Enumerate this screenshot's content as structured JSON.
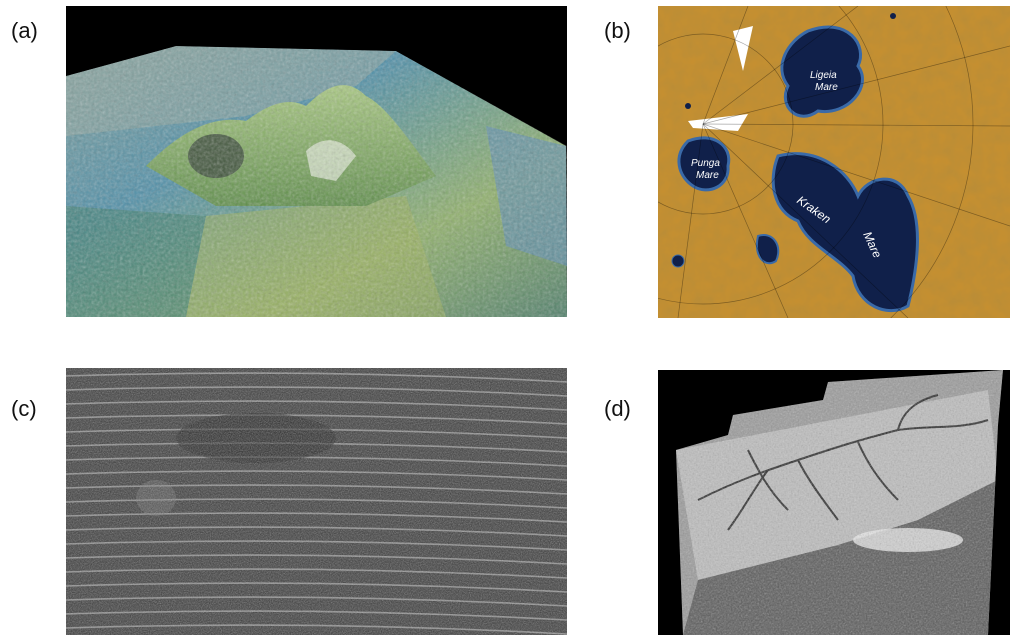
{
  "panels": [
    {
      "id": "a",
      "label": "(a)"
    },
    {
      "id": "b",
      "label": "(b)",
      "map_labels": {
        "ligeia": "Ligeia",
        "ligeia_mare": "Mare",
        "punga": "Punga",
        "punga_mare": "Mare",
        "kraken": "Kraken",
        "kraken_mare": "Mare"
      }
    },
    {
      "id": "c",
      "label": "(c)"
    },
    {
      "id": "d",
      "label": "(d)"
    }
  ],
  "colors": {
    "page_bg": "#ffffff",
    "space_black": "#000000",
    "titan_surface": "#c8902f",
    "lake_blue": "#10204a",
    "lake_edge": "#3a6aa8",
    "radar_dark": "#2a2a2a",
    "radar_light": "#d8d8d8"
  }
}
